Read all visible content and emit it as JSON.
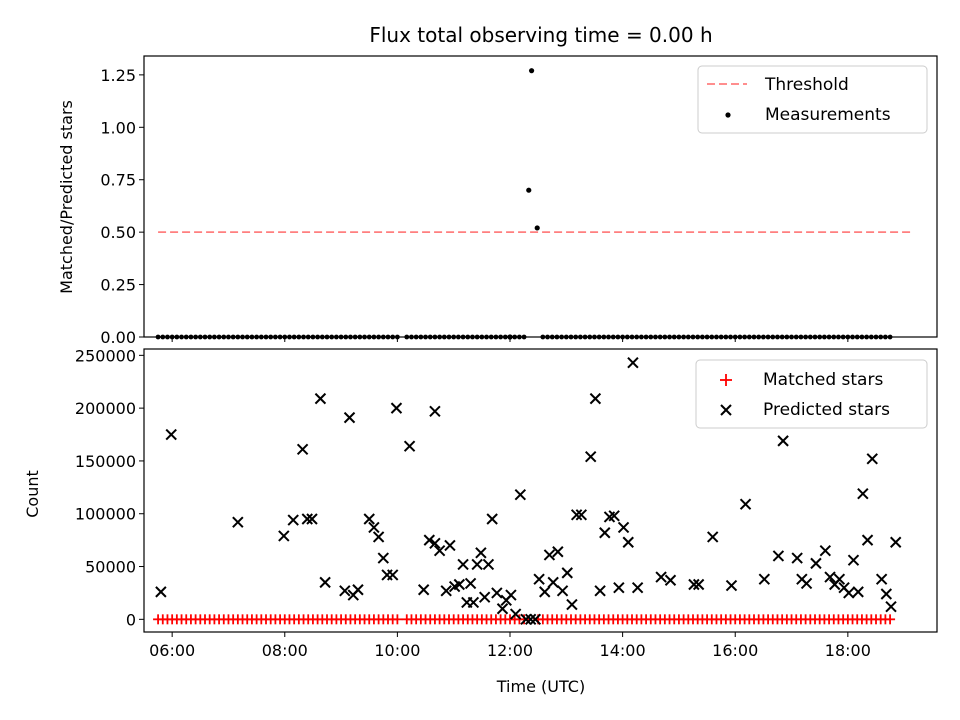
{
  "figure": {
    "title": "Flux total observing time = 0.00 h",
    "xlabel": "Time (UTC)"
  },
  "chart_data": [
    {
      "type": "scatter",
      "ylabel": "Matched/Predicted stars",
      "xlim": [
        "05:30",
        "19:35"
      ],
      "ylim": [
        0,
        1.34
      ],
      "x_ticks": [
        "06:00",
        "08:00",
        "10:00",
        "12:00",
        "14:00",
        "16:00",
        "18:00"
      ],
      "y_ticks": [
        "0.00",
        "0.25",
        "0.50",
        "0.75",
        "1.00",
        "1.25"
      ],
      "threshold": {
        "name": "Threshold",
        "value": 0.5,
        "x_start": "05:45",
        "x_end": "19:10",
        "color": "#ff7f7f"
      },
      "legend": {
        "position": "top-right",
        "entries": [
          "Threshold",
          "Measurements"
        ]
      },
      "series": [
        {
          "name": "Measurements",
          "color": "#000000",
          "points": [
            {
              "x": "12:20",
              "y": 0.7
            },
            {
              "x": "12:23",
              "y": 1.27
            },
            {
              "x": "12:29",
              "y": 0.52
            },
            {
              "x": "12:00",
              "y": 0.0
            }
          ],
          "zero_runs": [
            {
              "from": "05:45",
              "to": "09:20",
              "step_min": 5
            },
            {
              "from": "09:25",
              "to": "10:00",
              "step_min": 5
            },
            {
              "from": "10:10",
              "to": "12:15",
              "step_min": 5
            },
            {
              "from": "12:35",
              "to": "18:48",
              "step_min": 5
            }
          ]
        }
      ]
    },
    {
      "type": "scatter",
      "ylabel": "Count",
      "ylim": [
        -12000,
        256000
      ],
      "y_ticks": [
        "0",
        "50000",
        "100000",
        "150000",
        "200000",
        "250000"
      ],
      "legend": {
        "position": "top-right",
        "entries": [
          "Matched stars",
          "Predicted stars"
        ]
      },
      "series": [
        {
          "name": "Matched stars",
          "color": "#ff0000",
          "marker": "+",
          "zero_runs": [
            {
              "from": "05:45",
              "to": "09:20",
              "step_min": 5
            },
            {
              "from": "09:25",
              "to": "10:00",
              "step_min": 5
            },
            {
              "from": "10:10",
              "to": "12:15",
              "step_min": 5
            },
            {
              "from": "12:30",
              "to": "18:48",
              "step_min": 5
            }
          ]
        },
        {
          "name": "Predicted stars",
          "color": "#000000",
          "marker": "x",
          "points": [
            {
              "x": "05:48",
              "y": 26000
            },
            {
              "x": "05:59",
              "y": 175000
            },
            {
              "x": "07:10",
              "y": 92000
            },
            {
              "x": "07:59",
              "y": 79000
            },
            {
              "x": "08:09",
              "y": 94000
            },
            {
              "x": "08:19",
              "y": 161000
            },
            {
              "x": "08:24",
              "y": 95000
            },
            {
              "x": "08:29",
              "y": 95000
            },
            {
              "x": "08:38",
              "y": 209000
            },
            {
              "x": "08:43",
              "y": 35000
            },
            {
              "x": "09:04",
              "y": 27000
            },
            {
              "x": "09:09",
              "y": 191000
            },
            {
              "x": "09:13",
              "y": 23000
            },
            {
              "x": "09:18",
              "y": 28000
            },
            {
              "x": "09:30",
              "y": 95000
            },
            {
              "x": "09:35",
              "y": 87000
            },
            {
              "x": "09:40",
              "y": 78000
            },
            {
              "x": "09:45",
              "y": 58000
            },
            {
              "x": "09:49",
              "y": 42000
            },
            {
              "x": "09:55",
              "y": 42000
            },
            {
              "x": "09:59",
              "y": 200000
            },
            {
              "x": "10:13",
              "y": 164000
            },
            {
              "x": "10:28",
              "y": 28000
            },
            {
              "x": "10:34",
              "y": 75000
            },
            {
              "x": "10:40",
              "y": 72000
            },
            {
              "x": "10:45",
              "y": 65000
            },
            {
              "x": "10:40",
              "y": 197000
            },
            {
              "x": "10:52",
              "y": 27000
            },
            {
              "x": "10:56",
              "y": 70000
            },
            {
              "x": "11:01",
              "y": 31000
            },
            {
              "x": "11:06",
              "y": 33000
            },
            {
              "x": "11:10",
              "y": 52000
            },
            {
              "x": "11:14",
              "y": 16000
            },
            {
              "x": "11:18",
              "y": 34000
            },
            {
              "x": "11:21",
              "y": 16000
            },
            {
              "x": "11:25",
              "y": 52000
            },
            {
              "x": "11:29",
              "y": 63000
            },
            {
              "x": "11:33",
              "y": 21000
            },
            {
              "x": "11:37",
              "y": 52000
            },
            {
              "x": "11:41",
              "y": 95000
            },
            {
              "x": "11:46",
              "y": 25000
            },
            {
              "x": "11:52",
              "y": 10000
            },
            {
              "x": "11:56",
              "y": 18000
            },
            {
              "x": "12:01",
              "y": 23000
            },
            {
              "x": "12:06",
              "y": 5000
            },
            {
              "x": "12:11",
              "y": 118000
            },
            {
              "x": "12:17",
              "y": 0
            },
            {
              "x": "12:22",
              "y": 0
            },
            {
              "x": "12:27",
              "y": 0
            },
            {
              "x": "12:31",
              "y": 38000
            },
            {
              "x": "12:37",
              "y": 26000
            },
            {
              "x": "12:42",
              "y": 61000
            },
            {
              "x": "12:46",
              "y": 35000
            },
            {
              "x": "12:51",
              "y": 64000
            },
            {
              "x": "12:56",
              "y": 27000
            },
            {
              "x": "13:01",
              "y": 44000
            },
            {
              "x": "13:06",
              "y": 14000
            },
            {
              "x": "13:11",
              "y": 99000
            },
            {
              "x": "13:16",
              "y": 99000
            },
            {
              "x": "13:26",
              "y": 154000
            },
            {
              "x": "13:31",
              "y": 209000
            },
            {
              "x": "13:36",
              "y": 27000
            },
            {
              "x": "13:41",
              "y": 82000
            },
            {
              "x": "13:46",
              "y": 97000
            },
            {
              "x": "13:51",
              "y": 98000
            },
            {
              "x": "13:56",
              "y": 30000
            },
            {
              "x": "14:01",
              "y": 87000
            },
            {
              "x": "14:06",
              "y": 73000
            },
            {
              "x": "14:11",
              "y": 243000
            },
            {
              "x": "14:16",
              "y": 30000
            },
            {
              "x": "14:41",
              "y": 40000
            },
            {
              "x": "14:51",
              "y": 37000
            },
            {
              "x": "15:16",
              "y": 33000
            },
            {
              "x": "15:21",
              "y": 33000
            },
            {
              "x": "15:36",
              "y": 78000
            },
            {
              "x": "15:56",
              "y": 32000
            },
            {
              "x": "16:11",
              "y": 109000
            },
            {
              "x": "16:31",
              "y": 38000
            },
            {
              "x": "16:46",
              "y": 60000
            },
            {
              "x": "16:51",
              "y": 169000
            },
            {
              "x": "17:06",
              "y": 58000
            },
            {
              "x": "17:11",
              "y": 38000
            },
            {
              "x": "17:16",
              "y": 34000
            },
            {
              "x": "17:26",
              "y": 53000
            },
            {
              "x": "17:36",
              "y": 65000
            },
            {
              "x": "17:41",
              "y": 40000
            },
            {
              "x": "17:46",
              "y": 33000
            },
            {
              "x": "17:51",
              "y": 38000
            },
            {
              "x": "17:56",
              "y": 30000
            },
            {
              "x": "18:01",
              "y": 25000
            },
            {
              "x": "18:06",
              "y": 56000
            },
            {
              "x": "18:11",
              "y": 26000
            },
            {
              "x": "18:16",
              "y": 119000
            },
            {
              "x": "18:21",
              "y": 75000
            },
            {
              "x": "18:26",
              "y": 152000
            },
            {
              "x": "18:36",
              "y": 38000
            },
            {
              "x": "18:41",
              "y": 24000
            },
            {
              "x": "18:46",
              "y": 12000
            },
            {
              "x": "18:51",
              "y": 73000
            }
          ]
        }
      ]
    }
  ]
}
